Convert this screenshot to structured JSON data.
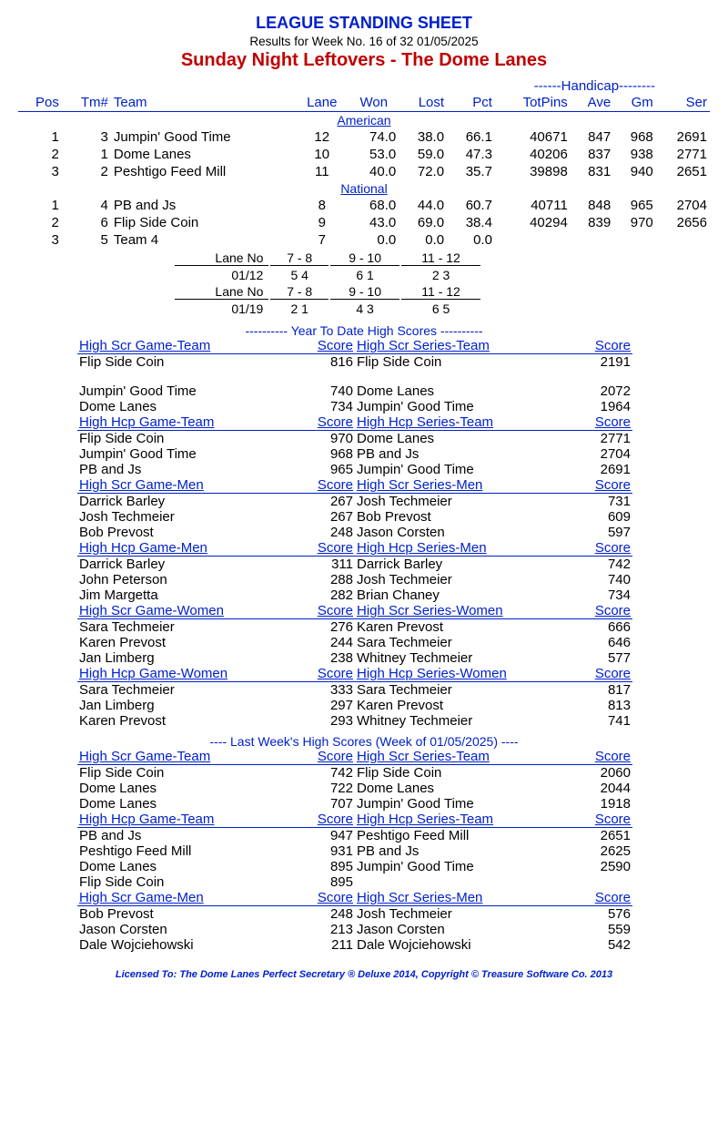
{
  "title": "LEAGUE STANDING SHEET",
  "sub": "Results for Week No. 16 of 32    01/05/2025",
  "league": "Sunday Night Leftovers - The Dome Lanes",
  "hcp": "------Handicap--------",
  "cols": [
    "Pos",
    "Tm#",
    "Team",
    "Lane",
    "Won",
    "Lost",
    "Pct",
    "TotPins",
    "Ave",
    "Gm",
    "Ser"
  ],
  "div1": "American",
  "div2": "National",
  "am": [
    [
      "1",
      "3",
      "Jumpin' Good Time",
      "12",
      "74.0",
      "38.0",
      "66.1",
      "40671",
      "847",
      "968",
      "2691"
    ],
    [
      "2",
      "1",
      "Dome Lanes",
      "10",
      "53.0",
      "59.0",
      "47.3",
      "40206",
      "837",
      "938",
      "2771"
    ],
    [
      "3",
      "2",
      "Peshtigo Feed Mill",
      "11",
      "40.0",
      "72.0",
      "35.7",
      "39898",
      "831",
      "940",
      "2651"
    ]
  ],
  "na": [
    [
      "1",
      "4",
      "PB and Js",
      "8",
      "68.0",
      "44.0",
      "60.7",
      "40711",
      "848",
      "965",
      "2704"
    ],
    [
      "2",
      "6",
      "Flip Side Coin",
      "9",
      "43.0",
      "69.0",
      "38.4",
      "40294",
      "839",
      "970",
      "2656"
    ],
    [
      "3",
      "5",
      "Team 4",
      "7",
      "0.0",
      "0.0",
      "0.0",
      "",
      "",
      "",
      ""
    ]
  ],
  "lanes": [
    [
      "Lane No",
      "7 - 8",
      "9 - 10",
      "11 - 12"
    ],
    [
      "01/12",
      "5    4",
      "6    1",
      "2    3"
    ],
    [
      "Lane No",
      "7 - 8",
      "9 - 10",
      "11 - 12"
    ],
    [
      "01/19",
      "2    1",
      "4    3",
      "6    5"
    ]
  ],
  "ythdr": "----------  Year To Date High Scores  ----------",
  "sections": [
    {
      "l": {
        "h": "High Scr Game-Team",
        "s": "Score",
        "r": [
          [
            "Flip Side Coin",
            "816"
          ],
          [
            "",
            ""
          ],
          [
            "Jumpin' Good Time",
            "740"
          ],
          [
            "Dome Lanes",
            "734"
          ]
        ]
      },
      "r": {
        "h": "High Scr Series-Team",
        "s": "Score",
        "r": [
          [
            "Flip Side Coin",
            "2191"
          ],
          [
            "",
            ""
          ],
          [
            "Dome Lanes",
            "2072"
          ],
          [
            "Jumpin' Good Time",
            "1964"
          ]
        ]
      }
    },
    {
      "l": {
        "h": "High Hcp Game-Team",
        "s": "Score",
        "r": [
          [
            "Flip Side Coin",
            "970"
          ],
          [
            "Jumpin' Good Time",
            "968"
          ],
          [
            "PB and Js",
            "965"
          ]
        ]
      },
      "r": {
        "h": "High Hcp Series-Team",
        "s": "Score",
        "r": [
          [
            "Dome Lanes",
            "2771"
          ],
          [
            "PB and Js",
            "2704"
          ],
          [
            "Jumpin' Good Time",
            "2691"
          ]
        ]
      }
    },
    {
      "l": {
        "h": "High Scr Game-Men",
        "s": "Score",
        "r": [
          [
            "Darrick Barley",
            "267"
          ],
          [
            "Josh Techmeier",
            "267"
          ],
          [
            "Bob Prevost",
            "248"
          ]
        ]
      },
      "r": {
        "h": "High Scr Series-Men",
        "s": "Score",
        "r": [
          [
            "Josh Techmeier",
            "731"
          ],
          [
            "Bob Prevost",
            "609"
          ],
          [
            "Jason Corsten",
            "597"
          ]
        ]
      }
    },
    {
      "l": {
        "h": "High Hcp Game-Men",
        "s": "Score",
        "r": [
          [
            "Darrick Barley",
            "311"
          ],
          [
            "John Peterson",
            "288"
          ],
          [
            "Jim Margetta",
            "282"
          ]
        ]
      },
      "r": {
        "h": "High Hcp Series-Men",
        "s": "Score",
        "r": [
          [
            "Darrick Barley",
            "742"
          ],
          [
            "Josh Techmeier",
            "740"
          ],
          [
            "Brian Chaney",
            "734"
          ]
        ]
      }
    },
    {
      "l": {
        "h": "High Scr Game-Women",
        "s": "Score",
        "r": [
          [
            "Sara Techmeier",
            "276"
          ],
          [
            "Karen Prevost",
            "244"
          ],
          [
            "Jan Limberg",
            "238"
          ]
        ]
      },
      "r": {
        "h": "High Scr Series-Women",
        "s": "Score",
        "r": [
          [
            "Karen Prevost",
            "666"
          ],
          [
            "Sara Techmeier",
            "646"
          ],
          [
            "Whitney Techmeier",
            "577"
          ]
        ]
      }
    },
    {
      "l": {
        "h": "High Hcp Game-Women",
        "s": "Score",
        "r": [
          [
            "Sara Techmeier",
            "333"
          ],
          [
            "Jan Limberg",
            "297"
          ],
          [
            "Karen Prevost",
            "293"
          ]
        ]
      },
      "r": {
        "h": "High Hcp Series-Women",
        "s": "Score",
        "r": [
          [
            "Sara Techmeier",
            "817"
          ],
          [
            "Karen Prevost",
            "813"
          ],
          [
            "Whitney Techmeier",
            "741"
          ]
        ]
      }
    }
  ],
  "lwhdr": "----   Last Week's High Scores    (Week of 01/05/2025)   ----",
  "lw": [
    {
      "l": {
        "h": "High Scr Game-Team",
        "s": "Score",
        "r": [
          [
            "Flip Side Coin",
            "742"
          ],
          [
            "Dome Lanes",
            "722"
          ],
          [
            "Dome Lanes",
            "707"
          ]
        ]
      },
      "r": {
        "h": "High Scr Series-Team",
        "s": "Score",
        "r": [
          [
            "Flip Side Coin",
            "2060"
          ],
          [
            "Dome Lanes",
            "2044"
          ],
          [
            "Jumpin' Good Time",
            "1918"
          ]
        ]
      }
    },
    {
      "l": {
        "h": "High Hcp Game-Team",
        "s": "Score",
        "r": [
          [
            "PB and Js",
            "947"
          ],
          [
            "Peshtigo Feed Mill",
            "931"
          ],
          [
            "Dome Lanes",
            "895"
          ],
          [
            "Flip Side Coin",
            "895"
          ]
        ]
      },
      "r": {
        "h": "High Hcp Series-Team",
        "s": "Score",
        "r": [
          [
            "Peshtigo Feed Mill",
            "2651"
          ],
          [
            "PB and Js",
            "2625"
          ],
          [
            "Jumpin' Good Time",
            "2590"
          ]
        ]
      }
    },
    {
      "l": {
        "h": "High Scr Game-Men",
        "s": "Score",
        "r": [
          [
            "Bob Prevost",
            "248"
          ],
          [
            "Jason Corsten",
            "213"
          ],
          [
            "Dale Wojciehowski",
            "211"
          ]
        ]
      },
      "r": {
        "h": "High Scr Series-Men",
        "s": "Score",
        "r": [
          [
            "Josh Techmeier",
            "576"
          ],
          [
            "Jason Corsten",
            "559"
          ],
          [
            "Dale Wojciehowski",
            "542"
          ]
        ]
      }
    }
  ],
  "foot": "Licensed To: The Dome Lanes     Perfect Secretary ® Deluxe  2014, Copyright © Treasure Software Co. 2013"
}
